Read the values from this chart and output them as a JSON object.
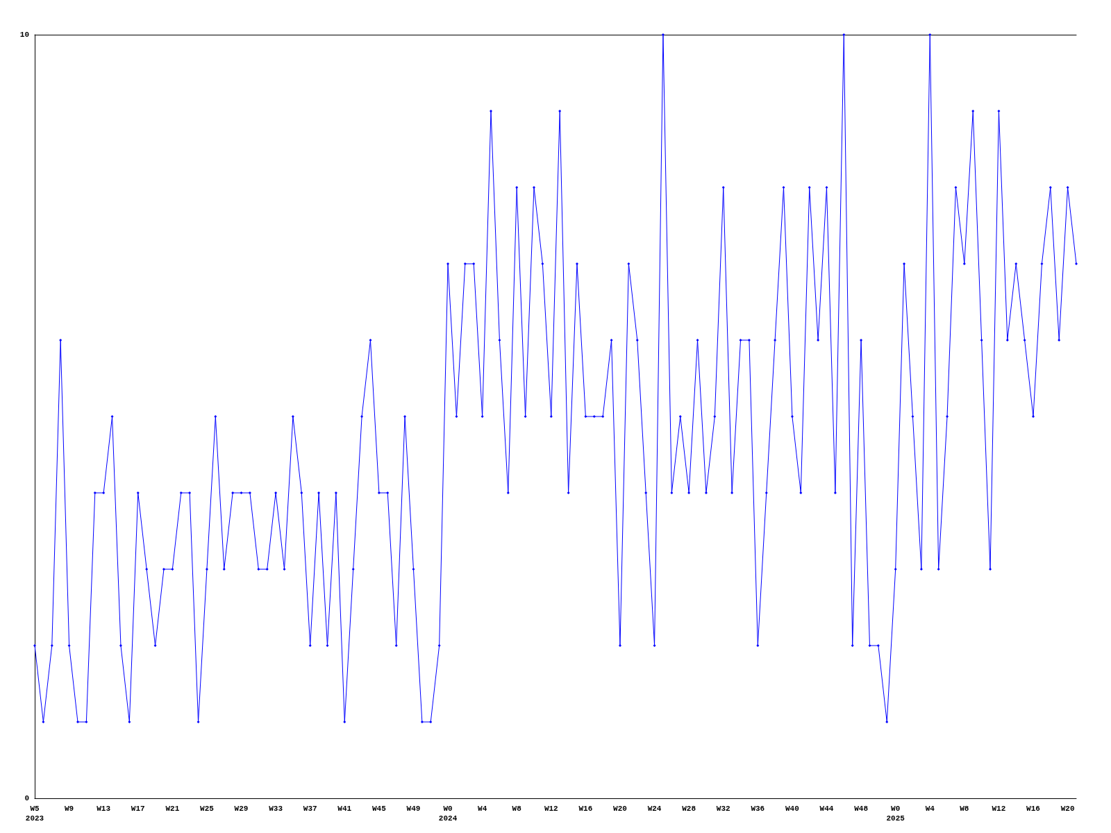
{
  "chart_data": {
    "type": "line",
    "color": "#0000ff",
    "marker": "diamond",
    "grid": false,
    "ylim": [
      0,
      10
    ],
    "yticks": [
      0,
      10
    ],
    "categories": [
      "W5\n2023",
      null,
      null,
      null,
      "W9",
      null,
      null,
      null,
      "W13",
      null,
      null,
      null,
      "W17",
      null,
      null,
      null,
      "W21",
      null,
      null,
      null,
      "W25",
      null,
      null,
      null,
      "W29",
      null,
      null,
      null,
      "W33",
      null,
      null,
      null,
      "W37",
      null,
      null,
      null,
      "W41",
      null,
      null,
      null,
      "W45",
      null,
      null,
      null,
      "W49",
      null,
      null,
      null,
      "W0\n2024",
      null,
      null,
      null,
      "W4",
      null,
      null,
      null,
      "W8",
      null,
      null,
      null,
      "W12",
      null,
      null,
      null,
      "W16",
      null,
      null,
      null,
      "W20",
      null,
      null,
      null,
      "W24",
      null,
      null,
      null,
      "W28",
      null,
      null,
      null,
      "W32",
      null,
      null,
      null,
      "W36",
      null,
      null,
      null,
      "W40",
      null,
      null,
      null,
      "W44",
      null,
      null,
      null,
      "W48",
      null,
      null,
      null,
      "W0\n2025",
      null,
      null,
      null,
      "W4",
      null,
      null,
      null,
      "W8",
      null,
      null,
      null,
      "W12",
      null,
      null,
      null,
      "W16",
      null,
      null,
      null,
      "W20",
      null
    ],
    "values": [
      2,
      1,
      2,
      6,
      2,
      1,
      1,
      4,
      4,
      5,
      2,
      1,
      4,
      3,
      2,
      3,
      3,
      4,
      4,
      1,
      3,
      5,
      3,
      4,
      4,
      4,
      3,
      3,
      4,
      3,
      5,
      4,
      2,
      4,
      2,
      4,
      1,
      3,
      5,
      6,
      4,
      4,
      2,
      5,
      3,
      1,
      1,
      2,
      7,
      5,
      7,
      7,
      5,
      9,
      6,
      4,
      8,
      5,
      8,
      7,
      5,
      9,
      4,
      7,
      5,
      5,
      5,
      6,
      2,
      7,
      6,
      4,
      2,
      10,
      4,
      5,
      4,
      6,
      4,
      5,
      8,
      4,
      6,
      6,
      2,
      4,
      6,
      8,
      5,
      4,
      8,
      6,
      8,
      4,
      10,
      2,
      6,
      2,
      2,
      1,
      3,
      7,
      5,
      3,
      10,
      3,
      5,
      8,
      7,
      9,
      6,
      3,
      9,
      6,
      7,
      6,
      5,
      7,
      8,
      6,
      8,
      7
    ]
  }
}
